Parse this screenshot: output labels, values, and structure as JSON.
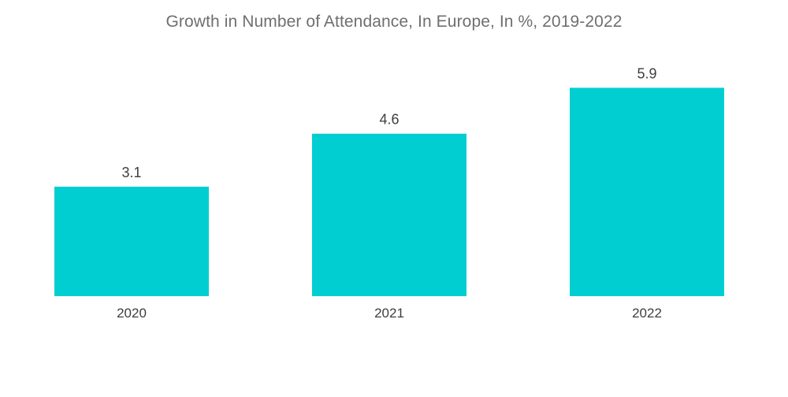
{
  "chart_data": {
    "type": "bar",
    "title": "Growth in Number of Attendance, In Europe, In %, 2019-2022",
    "categories": [
      "2020",
      "2021",
      "2022"
    ],
    "values": [
      3.1,
      4.6,
      5.9
    ],
    "xlabel": "",
    "ylabel": "",
    "ylim": [
      0,
      6.2
    ],
    "grid": false,
    "legend": "none",
    "bar_color": "#00ced1"
  }
}
